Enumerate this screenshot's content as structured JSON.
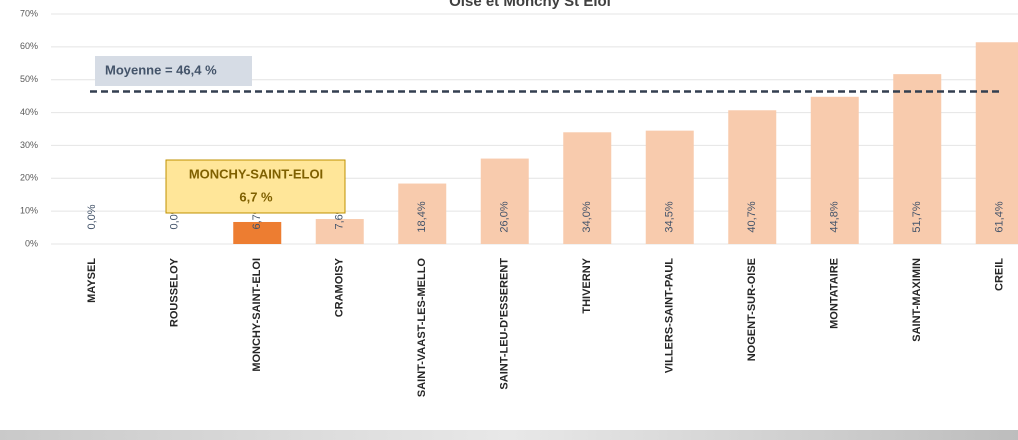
{
  "chart_data": {
    "type": "bar",
    "title": "Oise et Monchy St Eloi",
    "categories": [
      "MAYSEL",
      "ROUSSELOY",
      "MONCHY-SAINT-ELOI",
      "CRAMOISY",
      "SAINT-VAAST-LES-MELLO",
      "SAINT-LEU-D'ESSERENT",
      "THIVERNY",
      "VILLERS-SAINT-PAUL",
      "NOGENT-SUR-OISE",
      "MONTATAIRE",
      "SAINT-MAXIMIN",
      "CREIL"
    ],
    "values": [
      0.0,
      0.0,
      6.7,
      7.6,
      18.4,
      26.0,
      34.0,
      34.5,
      40.7,
      44.8,
      51.7,
      61.4
    ],
    "value_labels": [
      "0,0%",
      "0,0%",
      "6,7%",
      "7,6%",
      "18,4%",
      "26,0%",
      "34,0%",
      "34,5%",
      "40,7%",
      "44,8%",
      "51,7%",
      "61,4%"
    ],
    "colors": [
      "#f8cbad",
      "#f8cbad",
      "#ed7d31",
      "#f8cbad",
      "#f8cbad",
      "#f8cbad",
      "#f8cbad",
      "#f8cbad",
      "#f8cbad",
      "#f8cbad",
      "#f8cbad",
      "#f8cbad"
    ],
    "ylim": [
      0,
      70
    ],
    "yticks": [
      {
        "value": 0,
        "label": "0%"
      },
      {
        "value": 10,
        "label": "10%"
      },
      {
        "value": 20,
        "label": "20%"
      },
      {
        "value": 30,
        "label": "30%"
      },
      {
        "value": 40,
        "label": "40%"
      },
      {
        "value": 50,
        "label": "50%"
      },
      {
        "value": 60,
        "label": "60%"
      },
      {
        "value": 70,
        "label": "70%"
      }
    ],
    "grid": true,
    "reference_line": {
      "value": 46.4,
      "label": "Moyenne = 46,4 %"
    },
    "annotation": {
      "lines": [
        "MONCHY-SAINT-ELOI",
        "6,7 %"
      ]
    }
  }
}
